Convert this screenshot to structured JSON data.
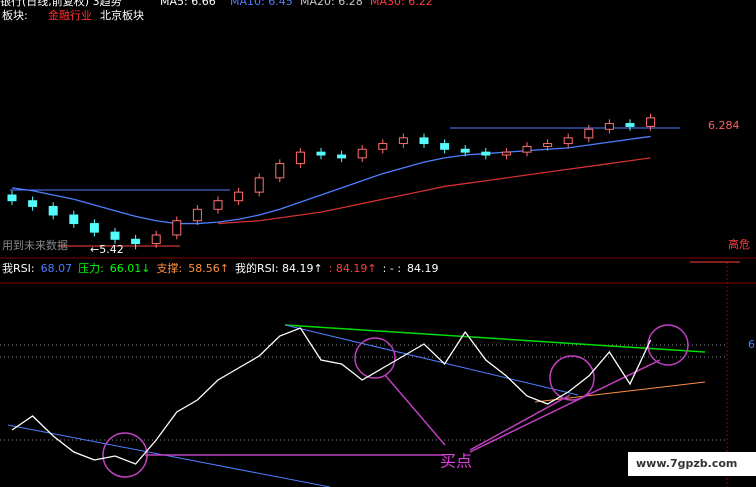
{
  "header": {
    "title": "银行(日线,前复权) 3趋势",
    "ma_items": [
      {
        "text": "MA5: 6.66",
        "color": "#ffffff"
      },
      {
        "text": "MA10: 6.45",
        "color": "#4f7fff"
      },
      {
        "text": "MA20: 6.28",
        "color": "#c8c8c8"
      },
      {
        "text": "MA30: 6.22",
        "color": "#ff4040"
      }
    ],
    "sector_label": "板块:",
    "sector_items": [
      {
        "text": "金融行业",
        "color": "#ff3030"
      },
      {
        "text": "北京板块",
        "color": "#ffffff"
      }
    ]
  },
  "labels": {
    "price_mark": "6.284",
    "low_mark": "←5.42",
    "future_note": "用到未来数据",
    "danger": "高危",
    "buy_point": "买点",
    "watermark": "www.7gpzb.com",
    "right_cut": "6"
  },
  "rsi_header": [
    {
      "text": "我RSI:",
      "color": "#ffffff"
    },
    {
      "text": "68.07",
      "color": "#4f7fff"
    },
    {
      "text": "压力:",
      "color": "#00ff00"
    },
    {
      "text": "66.01↓",
      "color": "#00ff00"
    },
    {
      "text": "支撑:",
      "color": "#ff9040"
    },
    {
      "text": "58.56↑",
      "color": "#ff9040"
    },
    {
      "text": "我的RSI: 84.19↑",
      "color": "#ffffff"
    },
    {
      "text": ": 84.19↑",
      "color": "#ff4040"
    },
    {
      "text": ": - :",
      "color": "#ffffff"
    },
    {
      "text": "84.19",
      "color": "#ffffff"
    }
  ],
  "chart_data": [
    {
      "type": "candlestick",
      "up_color": "#ff7070",
      "down_color": "#54fcfc",
      "ylim": [
        5.38,
        7.06
      ],
      "open": [
        5.8,
        5.76,
        5.72,
        5.66,
        5.6,
        5.54,
        5.49,
        5.46,
        5.52,
        5.62,
        5.7,
        5.76,
        5.82,
        5.92,
        6.02,
        6.1,
        6.08,
        6.06,
        6.12,
        6.16,
        6.2,
        6.16,
        6.12,
        6.1,
        6.08,
        6.1,
        6.14,
        6.16,
        6.2,
        6.26,
        6.3,
        6.28
      ],
      "high": [
        5.83,
        5.79,
        5.75,
        5.69,
        5.63,
        5.57,
        5.52,
        5.55,
        5.65,
        5.73,
        5.79,
        5.85,
        5.95,
        6.05,
        6.13,
        6.13,
        6.11,
        6.15,
        6.19,
        6.23,
        6.23,
        6.19,
        6.15,
        6.13,
        6.13,
        6.17,
        6.19,
        6.23,
        6.29,
        6.33,
        6.33,
        6.37
      ],
      "low": [
        5.73,
        5.69,
        5.63,
        5.57,
        5.51,
        5.46,
        5.42,
        5.43,
        5.49,
        5.59,
        5.67,
        5.73,
        5.79,
        5.89,
        5.99,
        6.05,
        6.03,
        6.03,
        6.09,
        6.13,
        6.13,
        6.09,
        6.07,
        6.05,
        6.05,
        6.07,
        6.11,
        6.13,
        6.17,
        6.23,
        6.25,
        6.25
      ],
      "close": [
        5.76,
        5.72,
        5.66,
        5.6,
        5.54,
        5.49,
        5.46,
        5.52,
        5.62,
        5.7,
        5.76,
        5.82,
        5.92,
        6.02,
        6.1,
        6.08,
        6.06,
        6.12,
        6.16,
        6.2,
        6.16,
        6.12,
        6.1,
        6.08,
        6.1,
        6.14,
        6.16,
        6.2,
        6.26,
        6.3,
        6.28,
        6.34
      ],
      "series": [
        {
          "color": "#4f7fff",
          "values": [
            5.85,
            5.83,
            5.8,
            5.77,
            5.73,
            5.69,
            5.65,
            5.62,
            5.6,
            5.6,
            5.61,
            5.63,
            5.66,
            5.7,
            5.75,
            5.8,
            5.85,
            5.9,
            5.95,
            5.99,
            6.03,
            6.06,
            6.08,
            6.09,
            6.1,
            6.11,
            6.12,
            6.13,
            6.15,
            6.17,
            6.19,
            6.21
          ]
        },
        {
          "color": "#d03030",
          "values": [
            null,
            null,
            null,
            null,
            null,
            null,
            null,
            null,
            null,
            null,
            5.6,
            5.61,
            5.62,
            5.64,
            5.66,
            5.68,
            5.71,
            5.74,
            5.77,
            5.8,
            5.83,
            5.86,
            5.88,
            5.9,
            5.92,
            5.94,
            5.96,
            5.98,
            6.0,
            6.02,
            6.04,
            6.06
          ]
        }
      ]
    },
    {
      "type": "line",
      "ylim": [
        0,
        100
      ],
      "series": [
        {
          "color": "#ffffff",
          "values": [
            25,
            32,
            22,
            14,
            10,
            12,
            8,
            20,
            34,
            40,
            50,
            56,
            62,
            72,
            76,
            60,
            58,
            50,
            56,
            62,
            68,
            58,
            74,
            60,
            52,
            42,
            38,
            44,
            52,
            64,
            48,
            70
          ]
        }
      ]
    }
  ]
}
